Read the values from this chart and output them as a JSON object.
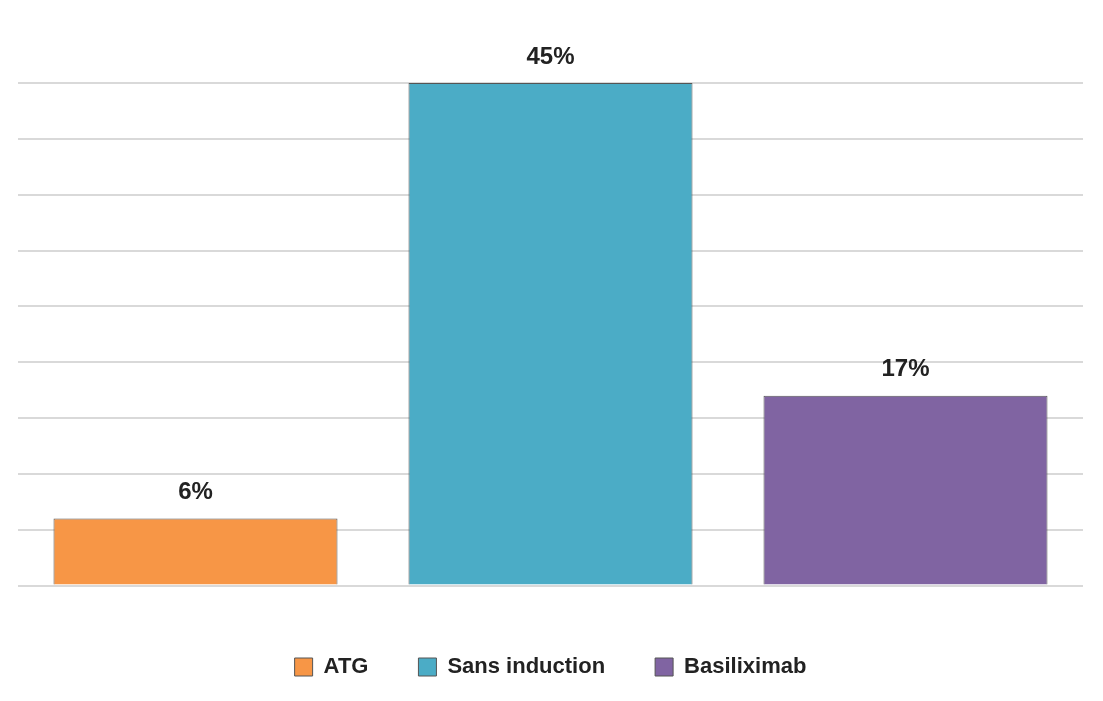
{
  "chart_data": {
    "type": "bar",
    "categories": [
      null,
      null,
      null
    ],
    "series": [
      {
        "name": "ATG",
        "color": "#f79646",
        "values": [
          6,
          null,
          null
        ],
        "value_labels": [
          "6%",
          null,
          null
        ]
      },
      {
        "name": "Sans induction",
        "color": "#4bacc6",
        "values": [
          null,
          45,
          null
        ],
        "value_labels": [
          null,
          "45%",
          null
        ]
      },
      {
        "name": "Basiliximab",
        "color": "#8064a2",
        "values": [
          null,
          null,
          17
        ],
        "value_labels": [
          null,
          null,
          "17%"
        ]
      }
    ],
    "grid": "y",
    "legend": "bottom",
    "stacked": true
  }
}
